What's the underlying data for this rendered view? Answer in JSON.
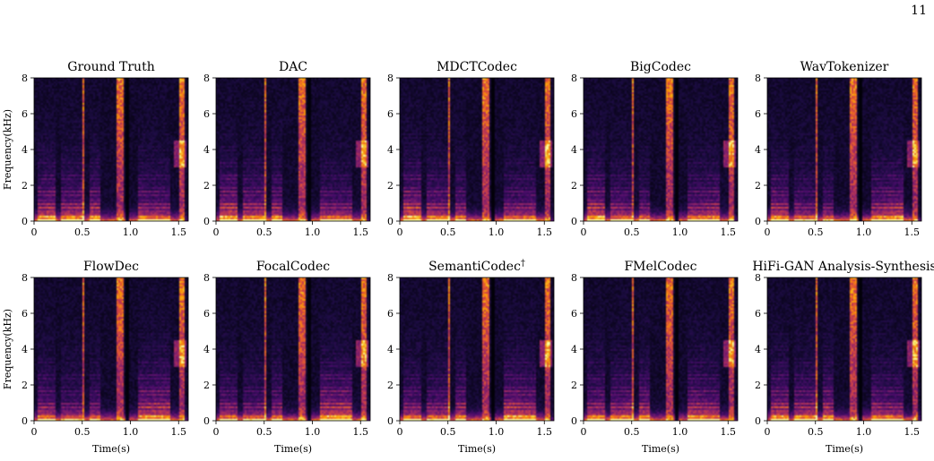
{
  "page_number": "11",
  "colormap": {
    "name": "inferno",
    "stops": [
      "#000004",
      "#1b0c41",
      "#4a0c6b",
      "#781c6d",
      "#a52c60",
      "#cf4446",
      "#ed6925",
      "#fb9b06",
      "#f7d13d",
      "#fcffa4"
    ]
  },
  "chart_data": {
    "type": "heatmap",
    "layout": "2x5 grid of spectrograms",
    "xlabel": "Time(s)",
    "ylabel": "Frequency(kHz)",
    "xlim": [
      0,
      1.6
    ],
    "ylim": [
      0,
      8
    ],
    "xticks": [
      0,
      0.5,
      1.0,
      1.5
    ],
    "xtick_labels": [
      "0",
      "0.5",
      "1.0",
      "1.5"
    ],
    "yticks": [
      0,
      2,
      4,
      6,
      8
    ],
    "ytick_labels": [
      "0",
      "2",
      "4",
      "6",
      "8"
    ],
    "panels": [
      {
        "title": "Ground Truth",
        "title_mark": ""
      },
      {
        "title": "DAC",
        "title_mark": ""
      },
      {
        "title": "MDCTCodec",
        "title_mark": ""
      },
      {
        "title": "BigCodec",
        "title_mark": ""
      },
      {
        "title": "WavTokenizer",
        "title_mark": ""
      },
      {
        "title": "FlowDec",
        "title_mark": ""
      },
      {
        "title": "FocalCodec",
        "title_mark": ""
      },
      {
        "title": "SemantiCodec",
        "title_mark": "†"
      },
      {
        "title": "FMelCodec",
        "title_mark": ""
      },
      {
        "title": "HiFi-GAN Analysis-Synthesis",
        "title_mark": ""
      }
    ]
  }
}
